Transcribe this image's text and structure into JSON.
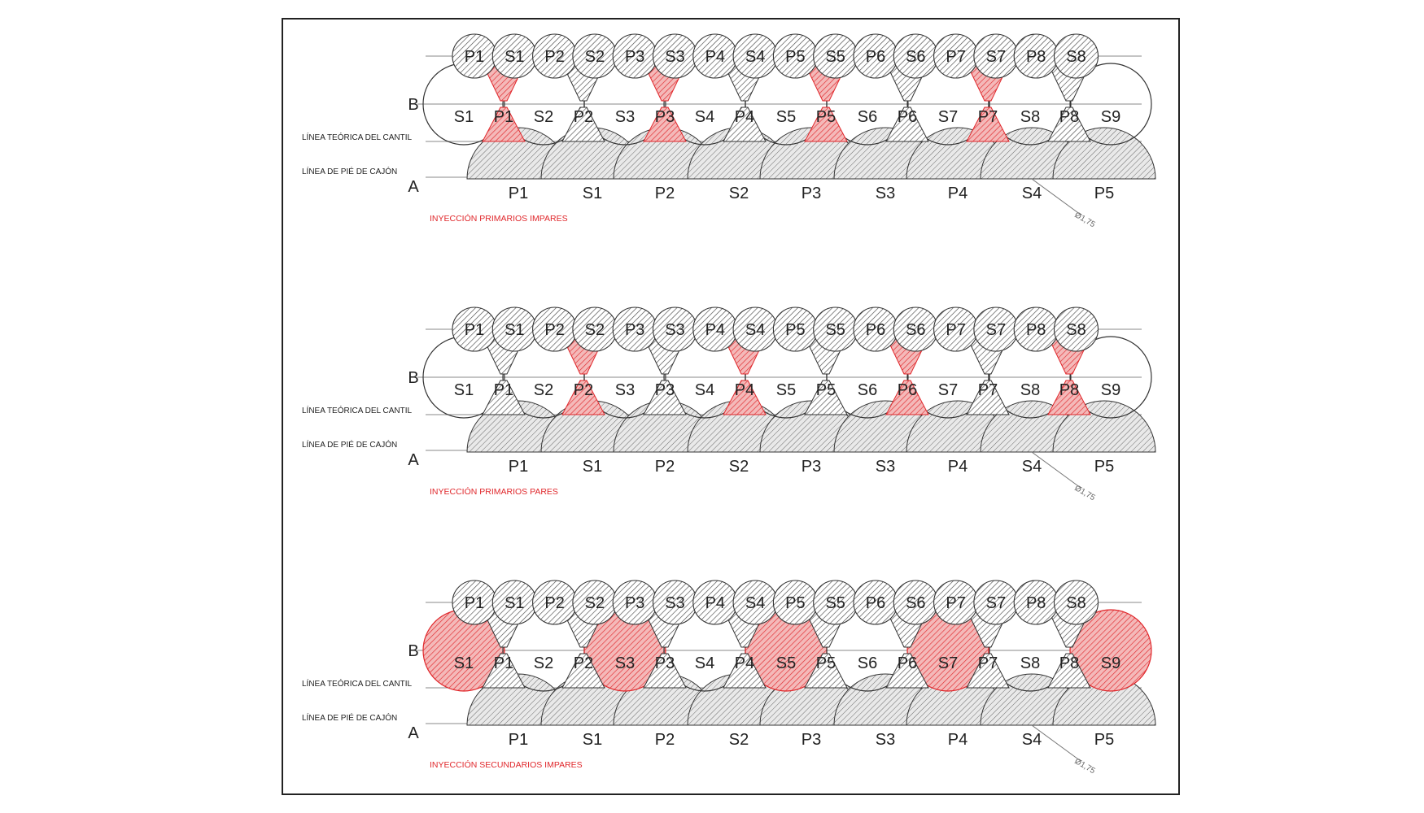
{
  "colors": {
    "grout": "#e0272b",
    "hatch": "#555555",
    "line": "#333333"
  },
  "panels": [
    {
      "caption": "INYECCIÓN PRIMARIOS IMPARES",
      "mode": "primarios-impares",
      "row_b_label": "B",
      "row_a_label": "A",
      "line_cantil_label": "LÍNEA TEÓRICA DEL CANTIL",
      "line_pie_label": "LÍNEA DE PIÉ DE CAJÓN",
      "top_labels": [
        "P1",
        "S1",
        "P2",
        "S2",
        "P3",
        "S3",
        "P4",
        "S4",
        "P5",
        "S5",
        "P6",
        "S6",
        "P7",
        "S7",
        "P8",
        "S8"
      ],
      "middle_labels": [
        "S1",
        "P1",
        "S2",
        "P2",
        "S3",
        "P3",
        "S4",
        "P4",
        "S5",
        "P5",
        "S6",
        "P6",
        "S7",
        "P7",
        "S8",
        "P8",
        "S9"
      ],
      "bottom_labels": [
        "P1",
        "S1",
        "P2",
        "S2",
        "P3",
        "S3",
        "P4",
        "S4",
        "P5"
      ],
      "dimension": "Ø1,75"
    },
    {
      "caption": "INYECCIÓN PRIMARIOS PARES",
      "mode": "primarios-pares",
      "row_b_label": "B",
      "row_a_label": "A",
      "line_cantil_label": "LÍNEA TEÓRICA DEL CANTIL",
      "line_pie_label": "LÍNEA DE PIÉ DE CAJÓN",
      "top_labels": [
        "P1",
        "S1",
        "P2",
        "S2",
        "P3",
        "S3",
        "P4",
        "S4",
        "P5",
        "S5",
        "P6",
        "S6",
        "P7",
        "S7",
        "P8",
        "S8"
      ],
      "middle_labels": [
        "S1",
        "P1",
        "S2",
        "P2",
        "S3",
        "P3",
        "S4",
        "P4",
        "S5",
        "P5",
        "S6",
        "P6",
        "S7",
        "P7",
        "S8",
        "P8",
        "S9"
      ],
      "bottom_labels": [
        "P1",
        "S1",
        "P2",
        "S2",
        "P3",
        "S3",
        "P4",
        "S4",
        "P5"
      ],
      "dimension": "Ø1,75"
    },
    {
      "caption": "INYECCIÓN SECUNDARIOS IMPARES",
      "mode": "secundarios-impares",
      "row_b_label": "B",
      "row_a_label": "A",
      "line_cantil_label": "LÍNEA TEÓRICA DEL CANTIL",
      "line_pie_label": "LÍNEA DE PIÉ DE CAJÓN",
      "top_labels": [
        "P1",
        "S1",
        "P2",
        "S2",
        "P3",
        "S3",
        "P4",
        "S4",
        "P5",
        "S5",
        "P6",
        "S6",
        "P7",
        "S7",
        "P8",
        "S8"
      ],
      "middle_labels": [
        "S1",
        "P1",
        "S2",
        "P2",
        "S3",
        "P3",
        "S4",
        "P4",
        "S5",
        "P5",
        "S6",
        "P6",
        "S7",
        "P7",
        "S8",
        "P8",
        "S9"
      ],
      "bottom_labels": [
        "P1",
        "S1",
        "P2",
        "S2",
        "P3",
        "S3",
        "P4",
        "S4",
        "P5"
      ],
      "dimension": "Ø1,75"
    }
  ]
}
